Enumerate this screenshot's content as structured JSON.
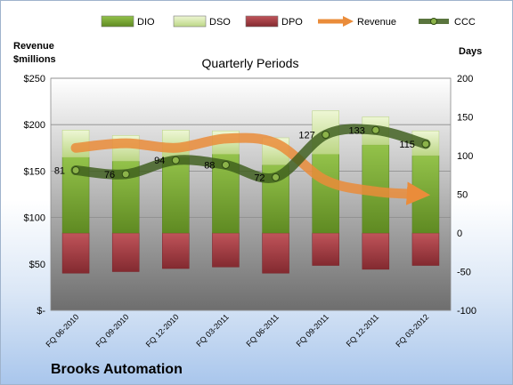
{
  "chart_data": {
    "type": "bar",
    "title": "Quarterly Periods",
    "company": "Brooks Automation",
    "y_left_label_line1": "Revenue",
    "y_left_label_line2": "$millions",
    "y_right_label": "Days",
    "categories": [
      "FQ 06-2010",
      "FQ 09-2010",
      "FQ 12-2010",
      "FQ 03-2011",
      "FQ 06-2011",
      "FQ 09-2011",
      "FQ 12-2011",
      "FQ 03-2012"
    ],
    "y_left_ticks": [
      "$250",
      "$200",
      "$150",
      "$100",
      "$50",
      "$-"
    ],
    "y_left_lim": [
      0,
      250
    ],
    "y_right_ticks": [
      "200",
      "150",
      "100",
      "50",
      "0",
      "-50",
      "-100"
    ],
    "y_right_lim": [
      -100,
      200
    ],
    "legend": [
      "DIO",
      "DSO",
      "DPO",
      "Revenue",
      "CCC"
    ],
    "legend_position": "top",
    "colors": {
      "DIO": "#7aa832",
      "DSO": "#cfe39a",
      "DPO": "#a53a40",
      "Revenue": "#ea8c3a",
      "CCC": "#3d5d1c",
      "plot_top": "#ffffff",
      "plot_bottom": "#6e6e6e",
      "grid": "#8a8a8a"
    },
    "series": [
      {
        "name": "DIO",
        "axis": "right",
        "values": [
          98,
          93,
          98,
          102,
          88,
          102,
          114,
          100
        ]
      },
      {
        "name": "DSO",
        "axis": "right",
        "values": [
          35,
          33,
          35,
          30,
          35,
          56,
          36,
          32
        ]
      },
      {
        "name": "DPO",
        "axis": "right",
        "values": [
          -52,
          -50,
          -46,
          -44,
          -52,
          -42,
          -47,
          -42
        ]
      },
      {
        "name": "Revenue",
        "axis": "left",
        "values": [
          175,
          180,
          175,
          185,
          180,
          140,
          128,
          128
        ]
      },
      {
        "name": "CCC",
        "axis": "right",
        "values": [
          81,
          76,
          94,
          88,
          72,
          127,
          133,
          115
        ],
        "data_labels": [
          "81",
          "76",
          "94",
          "88",
          "72",
          "127",
          "133",
          "115"
        ]
      }
    ]
  }
}
